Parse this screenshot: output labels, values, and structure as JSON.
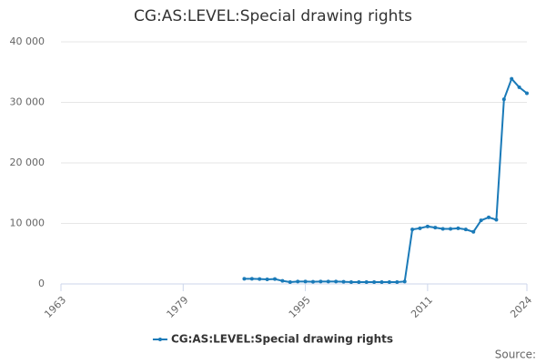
{
  "chart_data": {
    "type": "line",
    "title": "CG:AS:LEVEL:Special drawing rights",
    "x": [
      1987,
      1988,
      1989,
      1990,
      1991,
      1992,
      1993,
      1994,
      1995,
      1996,
      1997,
      1998,
      1999,
      2000,
      2001,
      2002,
      2003,
      2004,
      2005,
      2006,
      2007,
      2008,
      2009,
      2010,
      2011,
      2012,
      2013,
      2014,
      2015,
      2016,
      2017,
      2018,
      2019,
      2020,
      2021,
      2022,
      2023,
      2024
    ],
    "series": [
      {
        "name": "CG:AS:LEVEL:Special drawing rights",
        "color": "#1a7ab8",
        "values": [
          850,
          850,
          800,
          750,
          800,
          500,
          300,
          400,
          400,
          350,
          400,
          400,
          400,
          350,
          300,
          300,
          300,
          300,
          300,
          300,
          300,
          400,
          9000,
          9200,
          9500,
          9300,
          9100,
          9100,
          9200,
          9000,
          8600,
          10500,
          11000,
          10600,
          30500,
          33900,
          32500,
          31500
        ]
      }
    ],
    "xlim": [
      1963,
      2024
    ],
    "xticks": [
      1963,
      1979,
      1995,
      2011,
      2024
    ],
    "ylim": [
      0,
      40000
    ],
    "yticks": [
      0,
      {
        "value": 10000,
        "label": "10 000"
      },
      {
        "value": 20000,
        "label": "20 000"
      },
      {
        "value": 30000,
        "label": "30 000"
      },
      {
        "value": 40000,
        "label": "40 000"
      }
    ],
    "grid": true,
    "legend": "bottom",
    "source": "Source:"
  }
}
